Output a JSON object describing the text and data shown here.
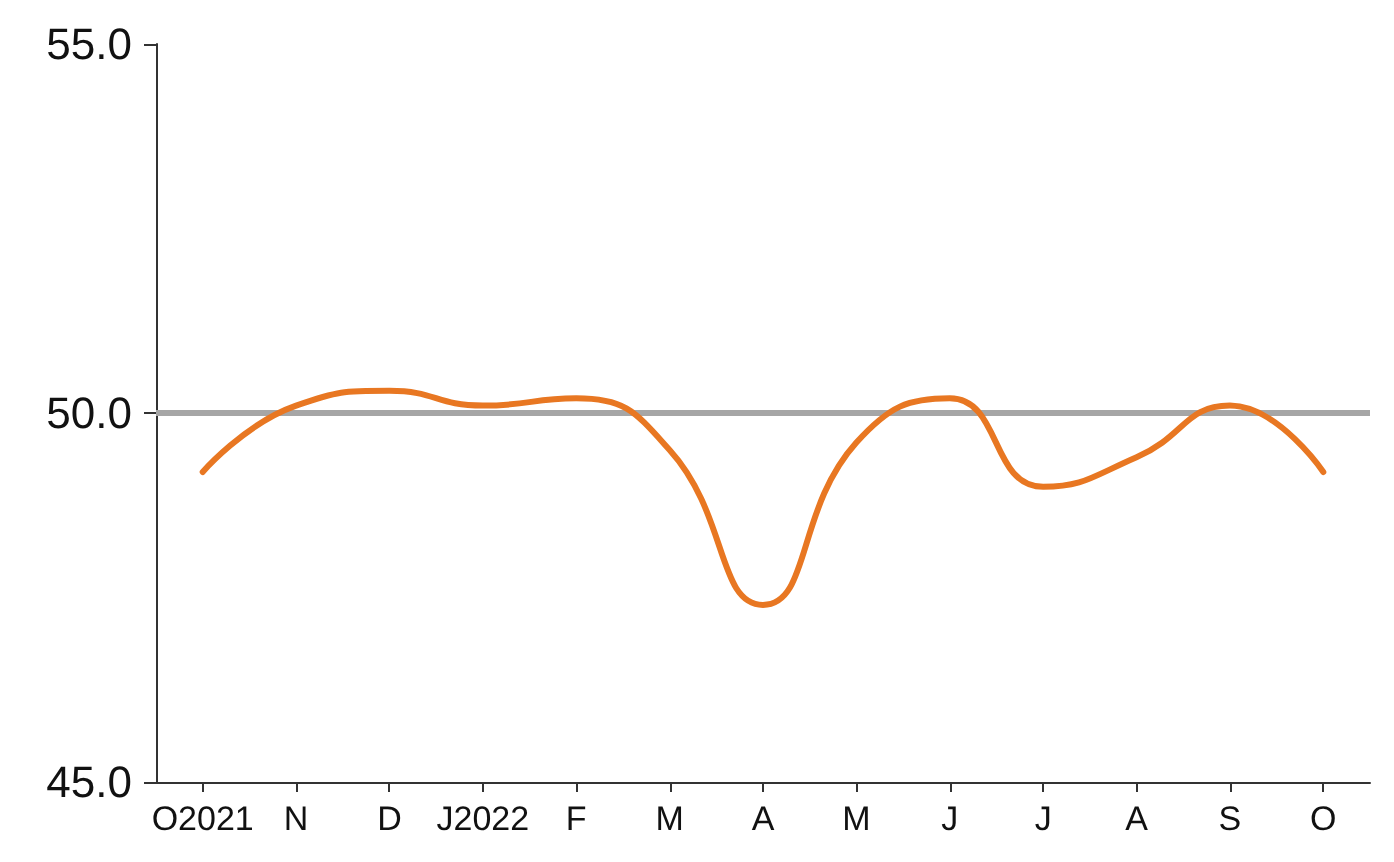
{
  "chart_data": {
    "type": "line",
    "categories": [
      "O2021",
      "N",
      "D",
      "J2022",
      "F",
      "M",
      "A",
      "M",
      "J",
      "J",
      "A",
      "S",
      "O"
    ],
    "series": [
      {
        "color": "#e87722",
        "values": [
          49.2,
          50.1,
          50.3,
          50.1,
          50.2,
          49.5,
          47.4,
          49.6,
          50.2,
          49.0,
          49.4,
          50.1,
          49.2
        ]
      }
    ],
    "ylim": [
      45,
      55
    ],
    "yticks": [
      {
        "value": 45,
        "label": "45.0"
      },
      {
        "value": 50,
        "label": "50.0"
      },
      {
        "value": 55,
        "label": "55.0"
      }
    ],
    "ref_lines": [
      {
        "axis": "y",
        "value": 50,
        "color": "#a6a6a6"
      }
    ],
    "grid": false,
    "marker": "none",
    "line_style": "solid"
  }
}
